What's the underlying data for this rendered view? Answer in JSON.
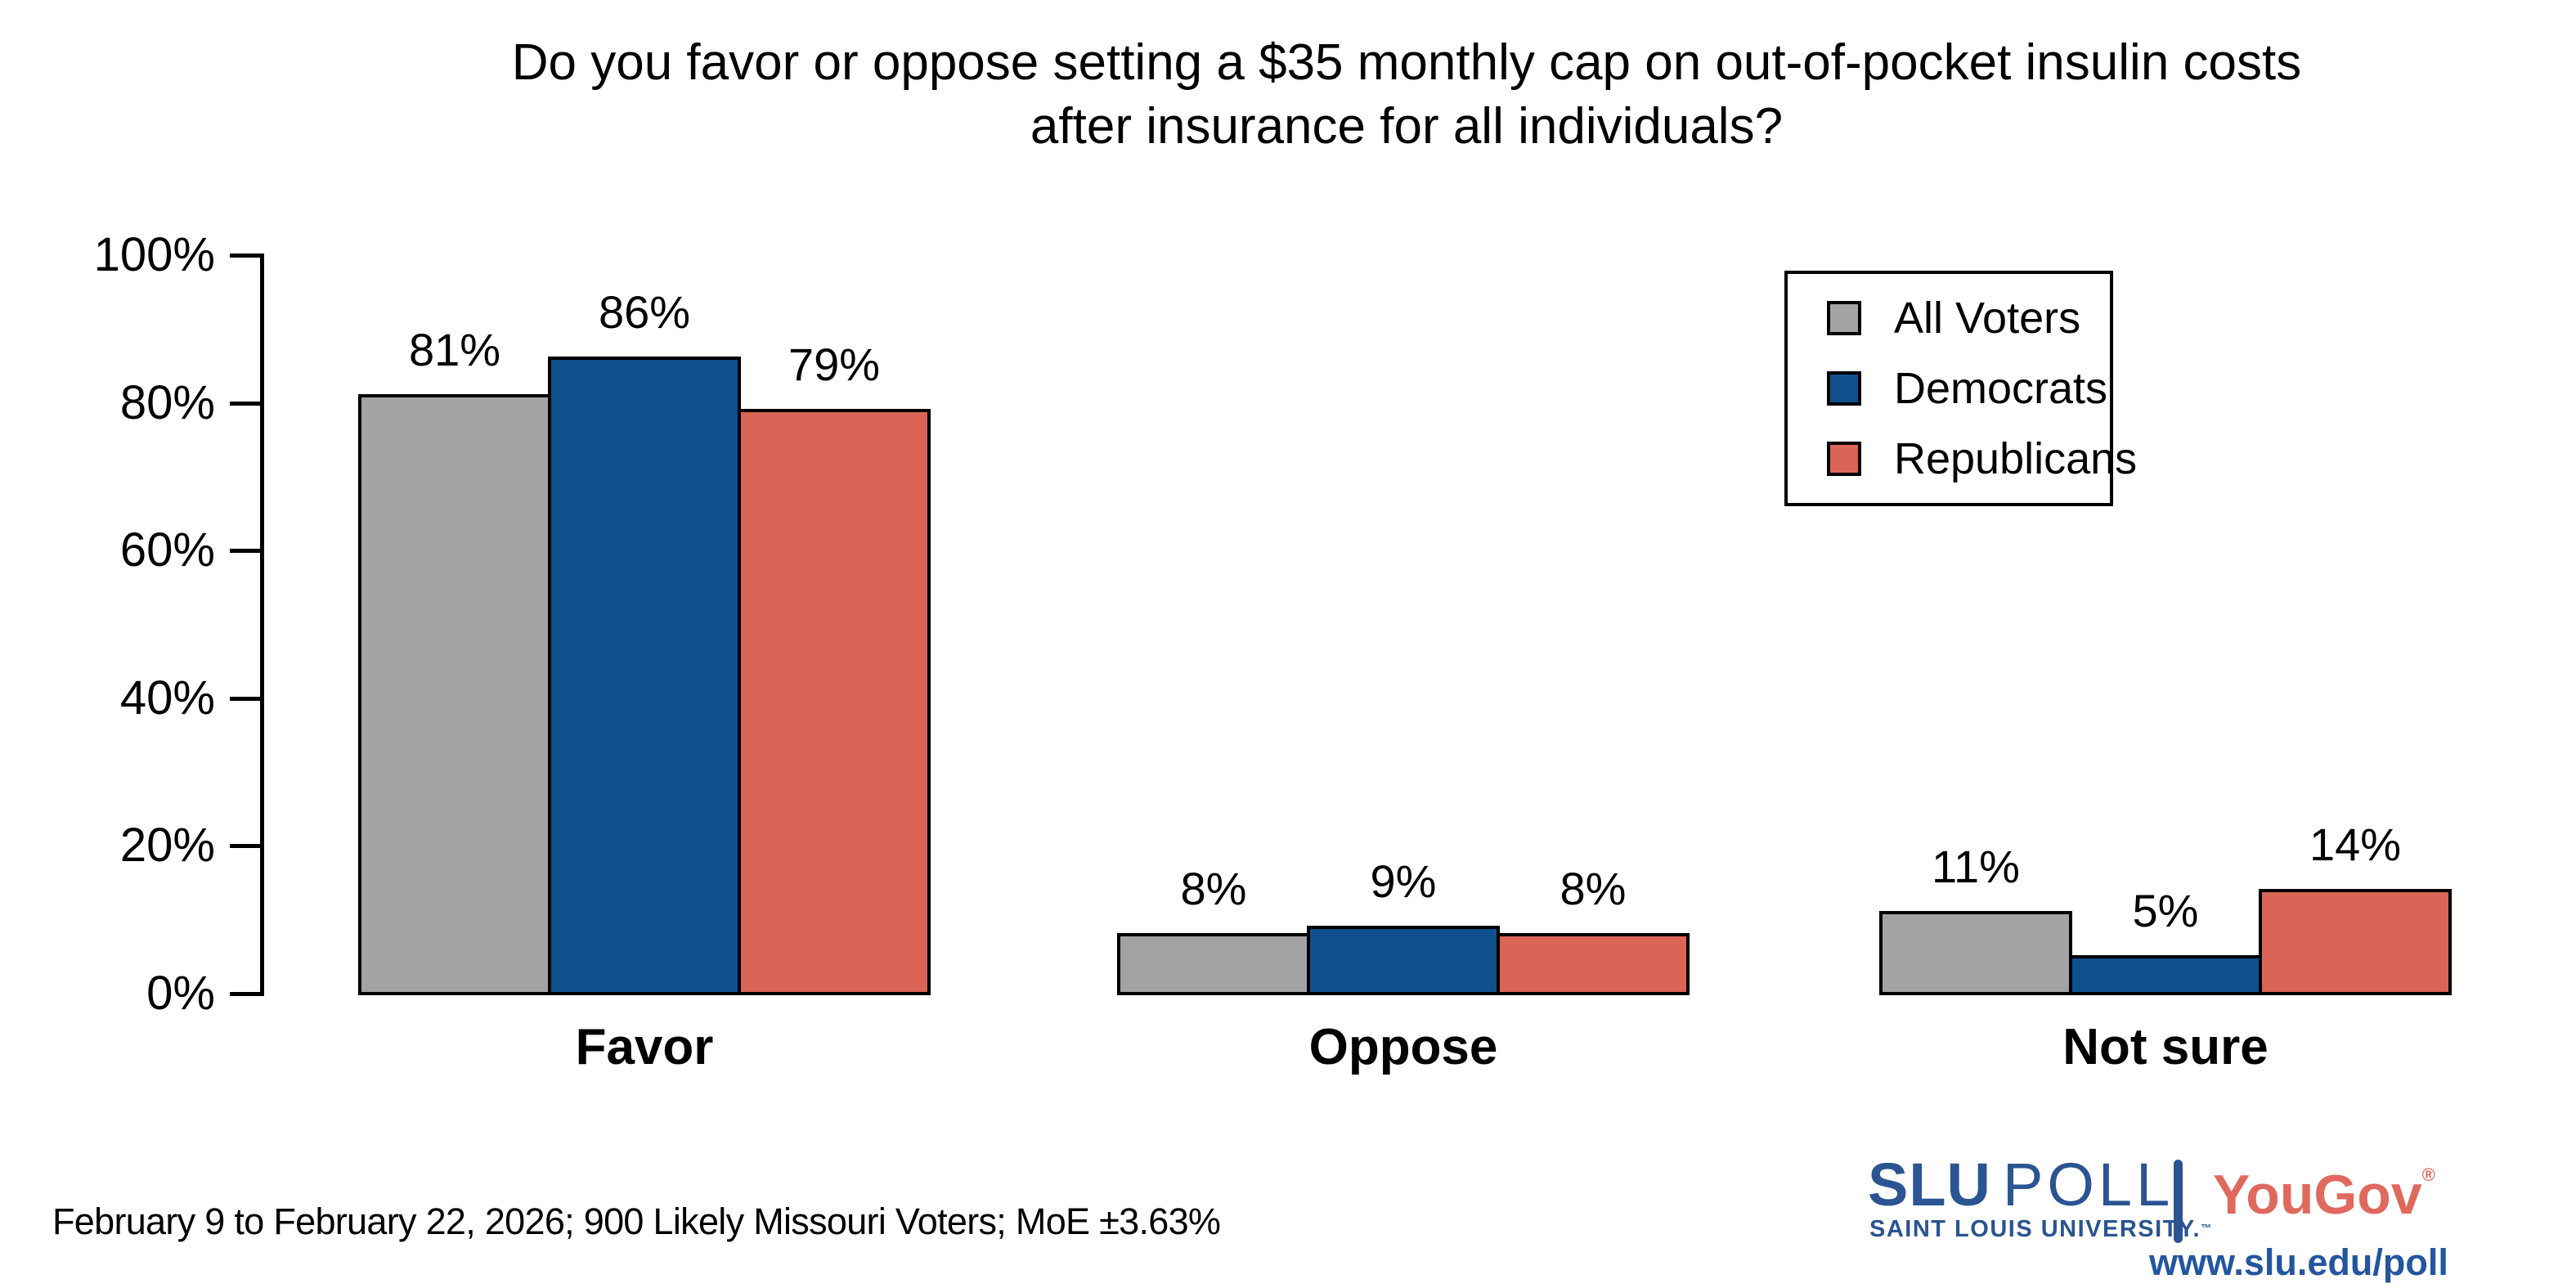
{
  "title": {
    "line1": "Do you favor or oppose setting a $35 monthly cap on out-of-pocket insulin costs",
    "line2": "after insurance for all individuals?"
  },
  "chart_data": {
    "type": "bar",
    "categories": [
      "Favor",
      "Oppose",
      "Not sure"
    ],
    "series": [
      {
        "name": "All Voters",
        "color": "#a3a3a4",
        "values": [
          81,
          8,
          11
        ]
      },
      {
        "name": "Democrats",
        "color": "#10508f",
        "values": [
          86,
          9,
          5
        ]
      },
      {
        "name": "Republicans",
        "color": "#db6457",
        "values": [
          79,
          8,
          14
        ]
      }
    ],
    "value_suffix": "%",
    "ylim": [
      0,
      100
    ],
    "yticks": [
      0,
      20,
      40,
      60,
      80,
      100
    ],
    "ytick_suffix": "%",
    "grid": false,
    "legend_position": "top-right"
  },
  "footer": {
    "note": "February 9 to February 22, 2026; 900 Likely Missouri Voters; MoE ±3.63%"
  },
  "branding": {
    "slu_bold": "SLU",
    "slu_light": "POLL",
    "slu_sub": "SAINT LOUIS UNIVERSITY.",
    "slu_tm": "™",
    "separator_color": "#2a5492",
    "slu_blue": "#2a5492",
    "yougov": "YouGov",
    "yougov_reg": "®",
    "yougov_red": "#e0695e",
    "url": "www.slu.edu/poll",
    "url_blue": "#2456a0"
  }
}
